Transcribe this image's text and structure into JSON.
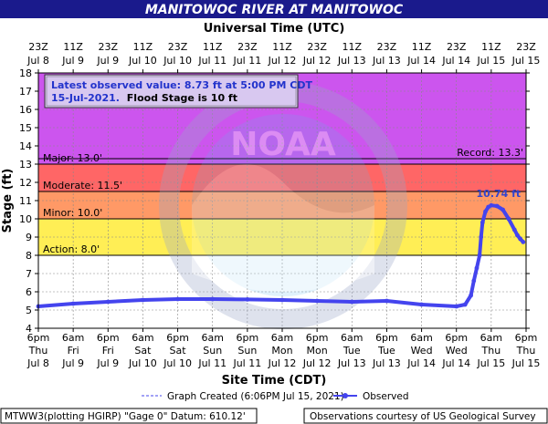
{
  "title": "MANITOWOC RIVER AT MANITOWOC",
  "top_axis_title": "Universal Time (UTC)",
  "bottom_axis_title": "Site Time (CDT)",
  "y_axis_title": "Stage (ft)",
  "info": {
    "line1": "Latest observed value: 8.73 ft at 5:00 PM CDT",
    "line2_date": "15-Jul-2021.",
    "line2_flood": "Flood Stage is 10 ft"
  },
  "legend": {
    "created": "Graph Created (6:06PM Jul 15, 2021)",
    "observed": "Observed"
  },
  "footer": {
    "left": "MTWW3(plotting HGIRP) \"Gage 0\" Datum: 610.12'",
    "right": "Observations courtesy of US Geological Survey"
  },
  "watermark": "NATIONAL OCEANIC AND ATMOSPHERIC ADMINISTRATION · U.S. DEPARTMENT OF COMMERCE · NOAA",
  "colors": {
    "major": "#cc55ee",
    "moderate": "#ff6666",
    "minor": "#ff9966",
    "action": "#ffee55",
    "normal": "#ffffff",
    "observed": "#4444ee",
    "title_bg": "#1a1a8c",
    "crest_label": "#3344cc"
  },
  "chart_data": {
    "type": "line",
    "y_range": [
      4,
      18
    ],
    "y_ticks": [
      4,
      5,
      6,
      7,
      8,
      9,
      10,
      11,
      12,
      13,
      14,
      15,
      16,
      17,
      18
    ],
    "x_ticks_bottom": [
      {
        "time": "6pm",
        "day": "Thu",
        "date": "Jul 8"
      },
      {
        "time": "6am",
        "day": "Fri",
        "date": "Jul 9"
      },
      {
        "time": "6pm",
        "day": "Fri",
        "date": "Jul 9"
      },
      {
        "time": "6am",
        "day": "Sat",
        "date": "Jul 10"
      },
      {
        "time": "6pm",
        "day": "Sat",
        "date": "Jul 10"
      },
      {
        "time": "6am",
        "day": "Sun",
        "date": "Jul 11"
      },
      {
        "time": "6pm",
        "day": "Sun",
        "date": "Jul 11"
      },
      {
        "time": "6am",
        "day": "Mon",
        "date": "Jul 12"
      },
      {
        "time": "6pm",
        "day": "Mon",
        "date": "Jul 12"
      },
      {
        "time": "6am",
        "day": "Tue",
        "date": "Jul 13"
      },
      {
        "time": "6pm",
        "day": "Tue",
        "date": "Jul 13"
      },
      {
        "time": "6am",
        "day": "Wed",
        "date": "Jul 14"
      },
      {
        "time": "6pm",
        "day": "Wed",
        "date": "Jul 14"
      },
      {
        "time": "6am",
        "day": "Thu",
        "date": "Jul 15"
      },
      {
        "time": "6pm",
        "day": "Thu",
        "date": "Jul 15"
      }
    ],
    "x_ticks_top": [
      {
        "time": "23Z",
        "date": "Jul 8"
      },
      {
        "time": "11Z",
        "date": "Jul 9"
      },
      {
        "time": "23Z",
        "date": "Jul 9"
      },
      {
        "time": "11Z",
        "date": "Jul 10"
      },
      {
        "time": "23Z",
        "date": "Jul 10"
      },
      {
        "time": "11Z",
        "date": "Jul 11"
      },
      {
        "time": "23Z",
        "date": "Jul 11"
      },
      {
        "time": "11Z",
        "date": "Jul 12"
      },
      {
        "time": "23Z",
        "date": "Jul 12"
      },
      {
        "time": "11Z",
        "date": "Jul 13"
      },
      {
        "time": "23Z",
        "date": "Jul 13"
      },
      {
        "time": "11Z",
        "date": "Jul 14"
      },
      {
        "time": "23Z",
        "date": "Jul 14"
      },
      {
        "time": "11Z",
        "date": "Jul 15"
      },
      {
        "time": "23Z",
        "date": "Jul 15"
      }
    ],
    "flood_categories": [
      {
        "name": "Major",
        "label": "Major: 13.0'",
        "value": 13.0,
        "top": 18,
        "color_key": "major"
      },
      {
        "name": "Moderate",
        "label": "Moderate: 11.5'",
        "value": 11.5,
        "top": 13.0,
        "color_key": "moderate"
      },
      {
        "name": "Minor",
        "label": "Minor: 10.0'",
        "value": 10.0,
        "top": 11.5,
        "color_key": "minor"
      },
      {
        "name": "Action",
        "label": "Action: 8.0'",
        "value": 8.0,
        "top": 10.0,
        "color_key": "action"
      }
    ],
    "record": {
      "label": "Record: 13.3'",
      "value": 13.3
    },
    "crest": {
      "label": "10.74 ft",
      "value": 10.74,
      "x": "Jul 15 06:00"
    },
    "series": [
      {
        "name": "Observed",
        "points": [
          [
            "Jul 8 18:00",
            5.2
          ],
          [
            "Jul 9 06:00",
            5.35
          ],
          [
            "Jul 9 18:00",
            5.45
          ],
          [
            "Jul 10 06:00",
            5.55
          ],
          [
            "Jul 10 18:00",
            5.6
          ],
          [
            "Jul 11 06:00",
            5.6
          ],
          [
            "Jul 11 18:00",
            5.58
          ],
          [
            "Jul 12 06:00",
            5.55
          ],
          [
            "Jul 12 18:00",
            5.5
          ],
          [
            "Jul 13 06:00",
            5.45
          ],
          [
            "Jul 13 18:00",
            5.5
          ],
          [
            "Jul 14 06:00",
            5.3
          ],
          [
            "Jul 14 18:00",
            5.2
          ],
          [
            "Jul 14 21:00",
            5.3
          ],
          [
            "Jul 14 23:00",
            5.8
          ],
          [
            "Jul 15 00:00",
            6.6
          ],
          [
            "Jul 15 01:00",
            7.3
          ],
          [
            "Jul 15 02:00",
            8.0
          ],
          [
            "Jul 15 02:30",
            9.0
          ],
          [
            "Jul 15 03:00",
            9.8
          ],
          [
            "Jul 15 04:00",
            10.4
          ],
          [
            "Jul 15 05:00",
            10.65
          ],
          [
            "Jul 15 06:00",
            10.74
          ],
          [
            "Jul 15 08:00",
            10.7
          ],
          [
            "Jul 15 10:00",
            10.5
          ],
          [
            "Jul 15 12:00",
            10.0
          ],
          [
            "Jul 15 14:00",
            9.4
          ],
          [
            "Jul 15 15:00",
            9.1
          ],
          [
            "Jul 15 16:00",
            8.9
          ],
          [
            "Jul 15 17:00",
            8.73
          ]
        ]
      }
    ]
  }
}
